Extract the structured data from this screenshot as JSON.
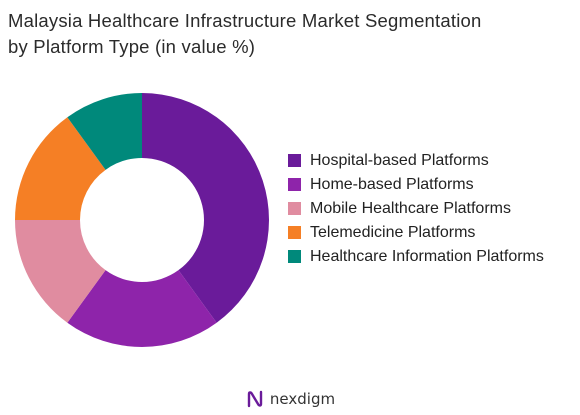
{
  "title_line1": "Malaysia Healthcare Infrastructure Market Segmentation",
  "title_line2": "by Platform Type (in value %)",
  "chart_data": {
    "type": "pie",
    "donut": true,
    "title": "Malaysia Healthcare Infrastructure Market Segmentation by Platform Type (in value %)",
    "legend_position": "right",
    "categories": [
      "Hospital-based Platforms",
      "Home-based Platforms",
      "Mobile Healthcare Platforms",
      "Telemedicine Platforms",
      "Healthcare Information Platforms"
    ],
    "values": [
      40,
      20,
      15,
      15,
      10
    ],
    "colors": [
      "#6a1b9a",
      "#8e24aa",
      "#e08ca0",
      "#f57f25",
      "#00897b"
    ]
  },
  "brand": {
    "name": "nexdigm",
    "logo_icon": "nexdigm-logo-icon",
    "logo_color": "#6a1b9a"
  }
}
